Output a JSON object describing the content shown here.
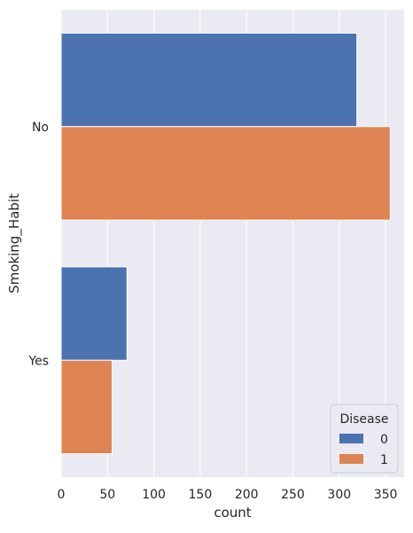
{
  "chart_data": {
    "type": "bar",
    "orientation": "horizontal",
    "categories": [
      "No",
      "Yes"
    ],
    "series": [
      {
        "name": "0",
        "color": "#4c72b0",
        "values": [
          319,
          71
        ]
      },
      {
        "name": "1",
        "color": "#dd8452",
        "values": [
          355,
          55
        ]
      }
    ],
    "xlabel": "count",
    "ylabel": "Smoking_Habit",
    "xlim": [
      0,
      370
    ],
    "xticks": [
      0,
      50,
      100,
      150,
      200,
      250,
      300,
      350
    ],
    "grid": true,
    "legend": {
      "title": "Disease",
      "placement": "lower-right"
    },
    "style": {
      "background": "#eaeaf2",
      "grid_color": "#ffffff",
      "bar_color_0": "#4c72b0",
      "bar_color_1": "#dd8452"
    }
  }
}
